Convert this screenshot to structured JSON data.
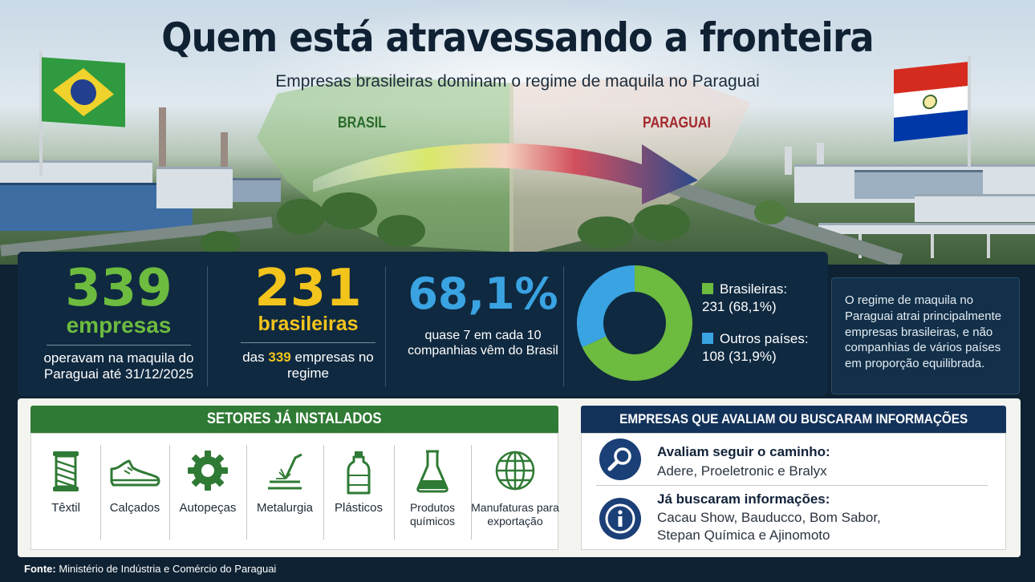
{
  "header": {
    "title": "Quem está atravessando a fronteira",
    "subtitle": "Empresas brasileiras dominam o regime de maquila no Paraguai",
    "label_left": "BRASIL",
    "label_right": "PARAGUAI"
  },
  "stats": {
    "total": {
      "value": "339",
      "unit": "empresas",
      "description": "operavam na maquila do Paraguai até 31/12/2025"
    },
    "brazilian": {
      "value": "231",
      "unit": "brasileiras",
      "description_before": "das",
      "highlight": "339",
      "description_after": "empresas no regime"
    },
    "share": {
      "value": "68,1%",
      "description": "quase 7 em cada 10 companhias vêm do Brasil"
    }
  },
  "donut": {
    "slices": [
      {
        "label": "Brasileiras:",
        "detail": "231 (68,1%)",
        "fraction": 0.681,
        "color": "#6dbb3f"
      },
      {
        "label": "Outros países:",
        "detail": "108 (31,9%)",
        "fraction": 0.319,
        "color": "#3aa3e2"
      }
    ]
  },
  "note": "O regime de maquila no Paraguai atrai principalmente empresas brasileiras, e não companhias de vários países em proporção equilibrada.",
  "sectors": {
    "header": "SETORES JÁ INSTALADOS",
    "items": [
      {
        "label": "Têxtil",
        "icon": "thread-spool-icon"
      },
      {
        "label": "Calçados",
        "icon": "shoe-icon"
      },
      {
        "label": "Autopeças",
        "icon": "gear-icon"
      },
      {
        "label": "Metalurgia",
        "icon": "welding-icon"
      },
      {
        "label": "Plásticos",
        "icon": "bottle-icon"
      },
      {
        "label": "Produtos químicos",
        "icon": "flask-icon"
      },
      {
        "label": "Manufaturas para exportação",
        "icon": "globe-icon"
      }
    ]
  },
  "companies": {
    "header": "EMPRESAS QUE AVALIAM OU BUSCARAM INFORMAÇÕES",
    "evaluating": {
      "title": "Avaliam seguir o caminho:",
      "text": "Adere, Proeletronic e Bralyx",
      "icon": "magnifier-icon"
    },
    "inquired": {
      "title": "Já buscaram informações:",
      "text": "Cacau Show, Bauducco, Bom Sabor, Stepan Química e Ajinomoto",
      "icon": "info-icon"
    }
  },
  "source": {
    "label": "Fonte:",
    "text": "Ministério de Indústria e Comércio do Paraguai"
  }
}
